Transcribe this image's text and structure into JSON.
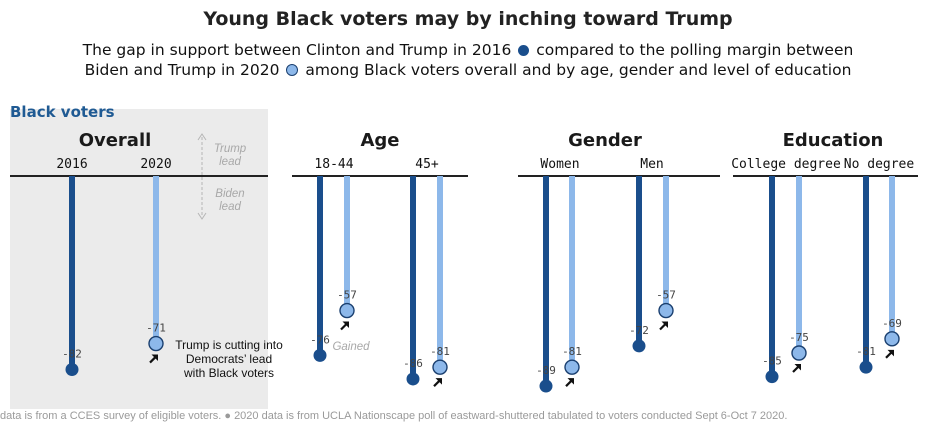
{
  "title": "Young Black voters may by inching toward Trump",
  "subtitle": {
    "line1_a": "The gap in support between Clinton and Trump in 2016",
    "line1_b": "compared to the polling margin between",
    "line2_a": "Biden and Trump in 2020",
    "line2_b": "among Black voters overall and by age, gender and level of education"
  },
  "section_label": "Black voters",
  "colors": {
    "y2016": "#1a4e8c",
    "y2020": "#8db8ea",
    "outline": "#1a3f6f",
    "axis": "#222222",
    "label_muted": "#a8a8a8"
  },
  "chart_data": {
    "type": "bar",
    "ylim": [
      -90,
      0
    ],
    "series": [
      {
        "name": "2016",
        "color": "#1a4e8c"
      },
      {
        "name": "2020",
        "color": "#8db8ea"
      }
    ],
    "direction_labels": {
      "up": "Trump lead",
      "down": "Biden lead"
    },
    "groups": [
      {
        "title": "Overall",
        "categories": [
          {
            "label": "2016",
            "series": "2016",
            "value": -82
          },
          {
            "label": "2020",
            "series": "2020",
            "value": -71
          }
        ]
      },
      {
        "title": "Age",
        "categories": [
          {
            "label": "18-44",
            "v2016": -76,
            "v2020": -57
          },
          {
            "label": "45+",
            "v2016": -86,
            "v2020": -81
          }
        ]
      },
      {
        "title": "Gender",
        "categories": [
          {
            "label": "Women",
            "v2016": -89,
            "v2020": -81
          },
          {
            "label": "Men",
            "v2016": -72,
            "v2020": -57
          }
        ]
      },
      {
        "title": "Education",
        "categories": [
          {
            "label": "College degree",
            "v2016": -85,
            "v2020": -75
          },
          {
            "label": "No degree",
            "v2016": -81,
            "v2020": -69
          }
        ]
      }
    ],
    "annotations": {
      "overall_note": "Trump is cutting into Democrats’ lead with Black voters",
      "gained": "Gained"
    }
  },
  "footer": "data is from a CCES survey of eligible voters. ● 2020 data is from UCLA Nationscape poll of eastward-shuttered tabulated to voters conducted Sept 6-Oct 7 2020."
}
